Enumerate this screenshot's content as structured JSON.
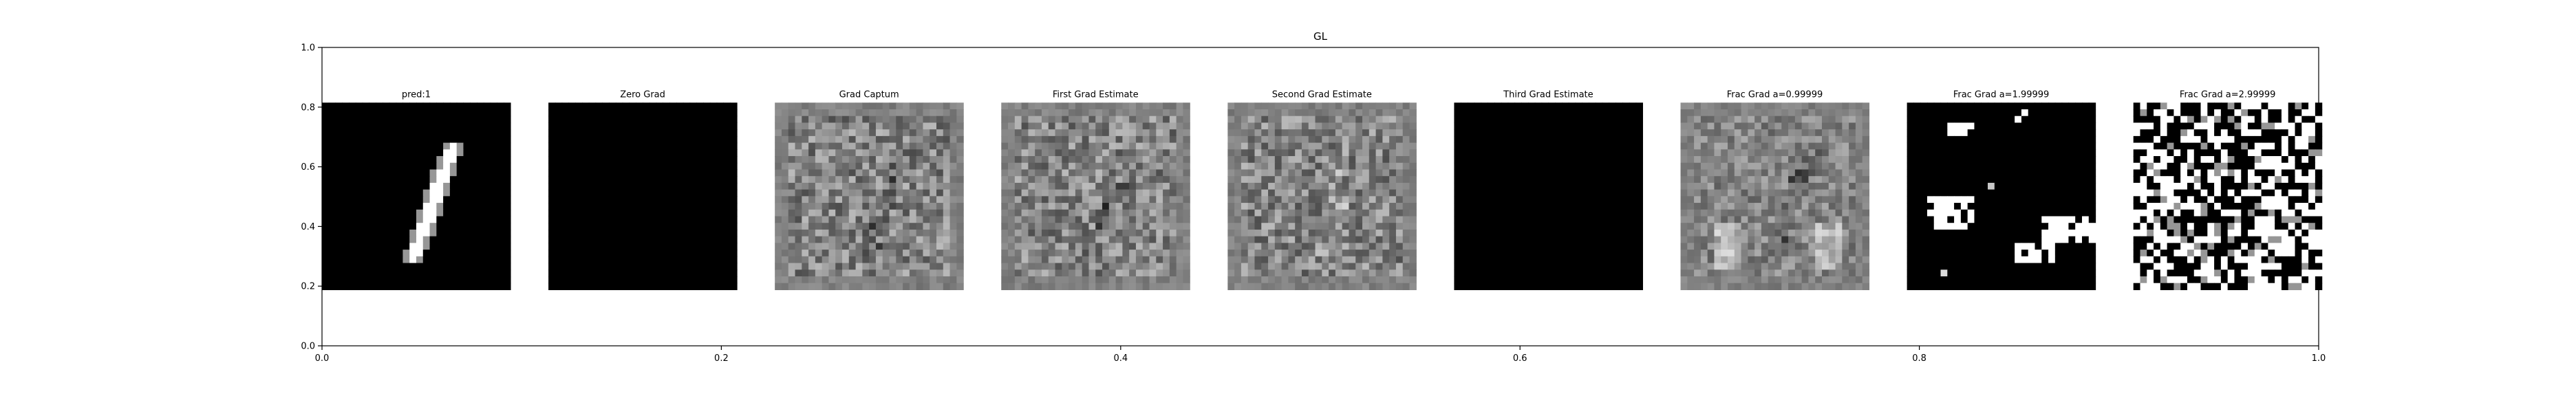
{
  "chart_data": {
    "type": "image-grid",
    "title": "GL",
    "xlim": [
      0.0,
      1.0
    ],
    "ylim": [
      0.0,
      1.0
    ],
    "x_ticks": [
      "0.0",
      "0.2",
      "0.4",
      "0.6",
      "0.8",
      "1.0"
    ],
    "y_ticks": [
      "0.0",
      "0.2",
      "0.4",
      "0.6",
      "0.8",
      "1.0"
    ],
    "grid": false,
    "panels": [
      {
        "title": "pred:1",
        "pattern": "digit"
      },
      {
        "title": "Zero Grad",
        "pattern": "black"
      },
      {
        "title": "Grad Captum",
        "pattern": "noise-gray"
      },
      {
        "title": "First Grad Estimate",
        "pattern": "noise-gray"
      },
      {
        "title": "Second Grad Estimate",
        "pattern": "noise-gray-alt"
      },
      {
        "title": "Third Grad Estimate",
        "pattern": "black"
      },
      {
        "title": "Frac Grad a=0.99999",
        "pattern": "noise-gray-soft"
      },
      {
        "title": "Frac Grad a=1.99999",
        "pattern": "sparse-white"
      },
      {
        "title": "Frac Grad a=2.99999",
        "pattern": "binary-noise"
      }
    ]
  }
}
